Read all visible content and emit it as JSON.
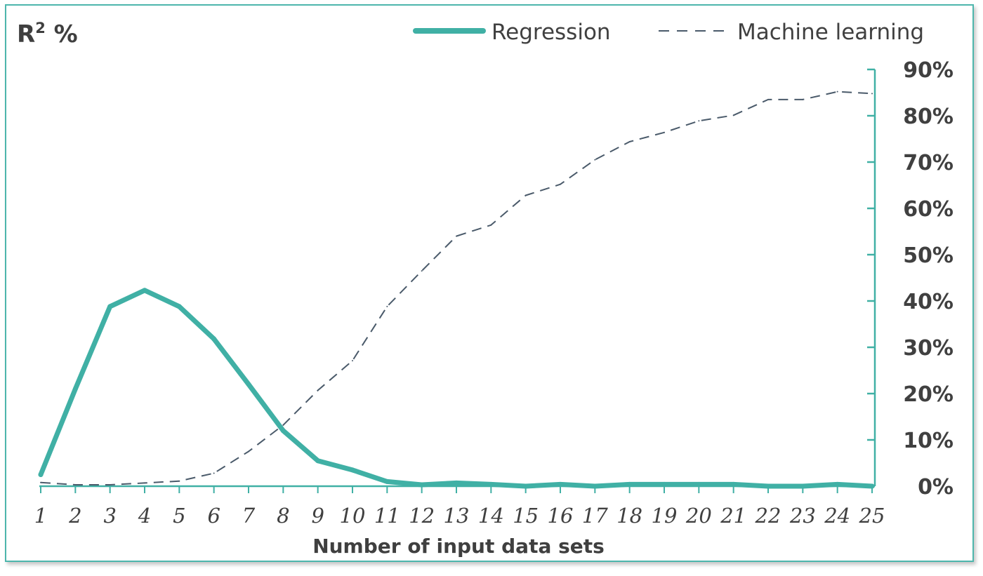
{
  "chart_data": {
    "type": "line",
    "title_main": "R",
    "title_sup": "2",
    "title_suffix": " %",
    "xlabel": "Number of input data sets",
    "ylabel": "R2 %",
    "x": [
      1,
      2,
      3,
      4,
      5,
      6,
      7,
      8,
      9,
      10,
      11,
      12,
      13,
      14,
      15,
      16,
      17,
      18,
      19,
      20,
      21,
      22,
      23,
      24,
      25
    ],
    "ylim": [
      0,
      90
    ],
    "yticks": [
      0,
      10,
      20,
      30,
      40,
      50,
      60,
      70,
      80,
      90
    ],
    "ytick_labels": [
      "0%",
      "10%",
      "20%",
      "30%",
      "40%",
      "50%",
      "60%",
      "70%",
      "80%",
      "90%"
    ],
    "y_axis_position": "right",
    "grid": false,
    "legend_position": "top-right",
    "series": [
      {
        "name": "Regression",
        "style": "solid-thick",
        "color": "#40b0a5",
        "values": [
          2.5,
          21,
          38.8,
          42.3,
          38.8,
          31.8,
          22,
          12,
          5.5,
          3.5,
          1,
          0.3,
          0.7,
          0.4,
          0,
          0.4,
          0,
          0.4,
          0.4,
          0.4,
          0.4,
          0,
          0,
          0.4,
          0
        ]
      },
      {
        "name": "Machine learning",
        "style": "dashed-thin",
        "color": "#4a5a6a",
        "values": [
          0.8,
          0.3,
          0.3,
          0.7,
          1.1,
          2.8,
          7.5,
          13.2,
          20.7,
          27.1,
          38.8,
          46.5,
          54,
          56.4,
          62.8,
          65.2,
          70.5,
          74.4,
          76.4,
          78.9,
          80.1,
          83.5,
          83.5,
          85.2,
          84.8
        ]
      }
    ],
    "colors": {
      "axis": "#40b0a5",
      "frame": "#4db6ac",
      "text": "#404040"
    }
  }
}
